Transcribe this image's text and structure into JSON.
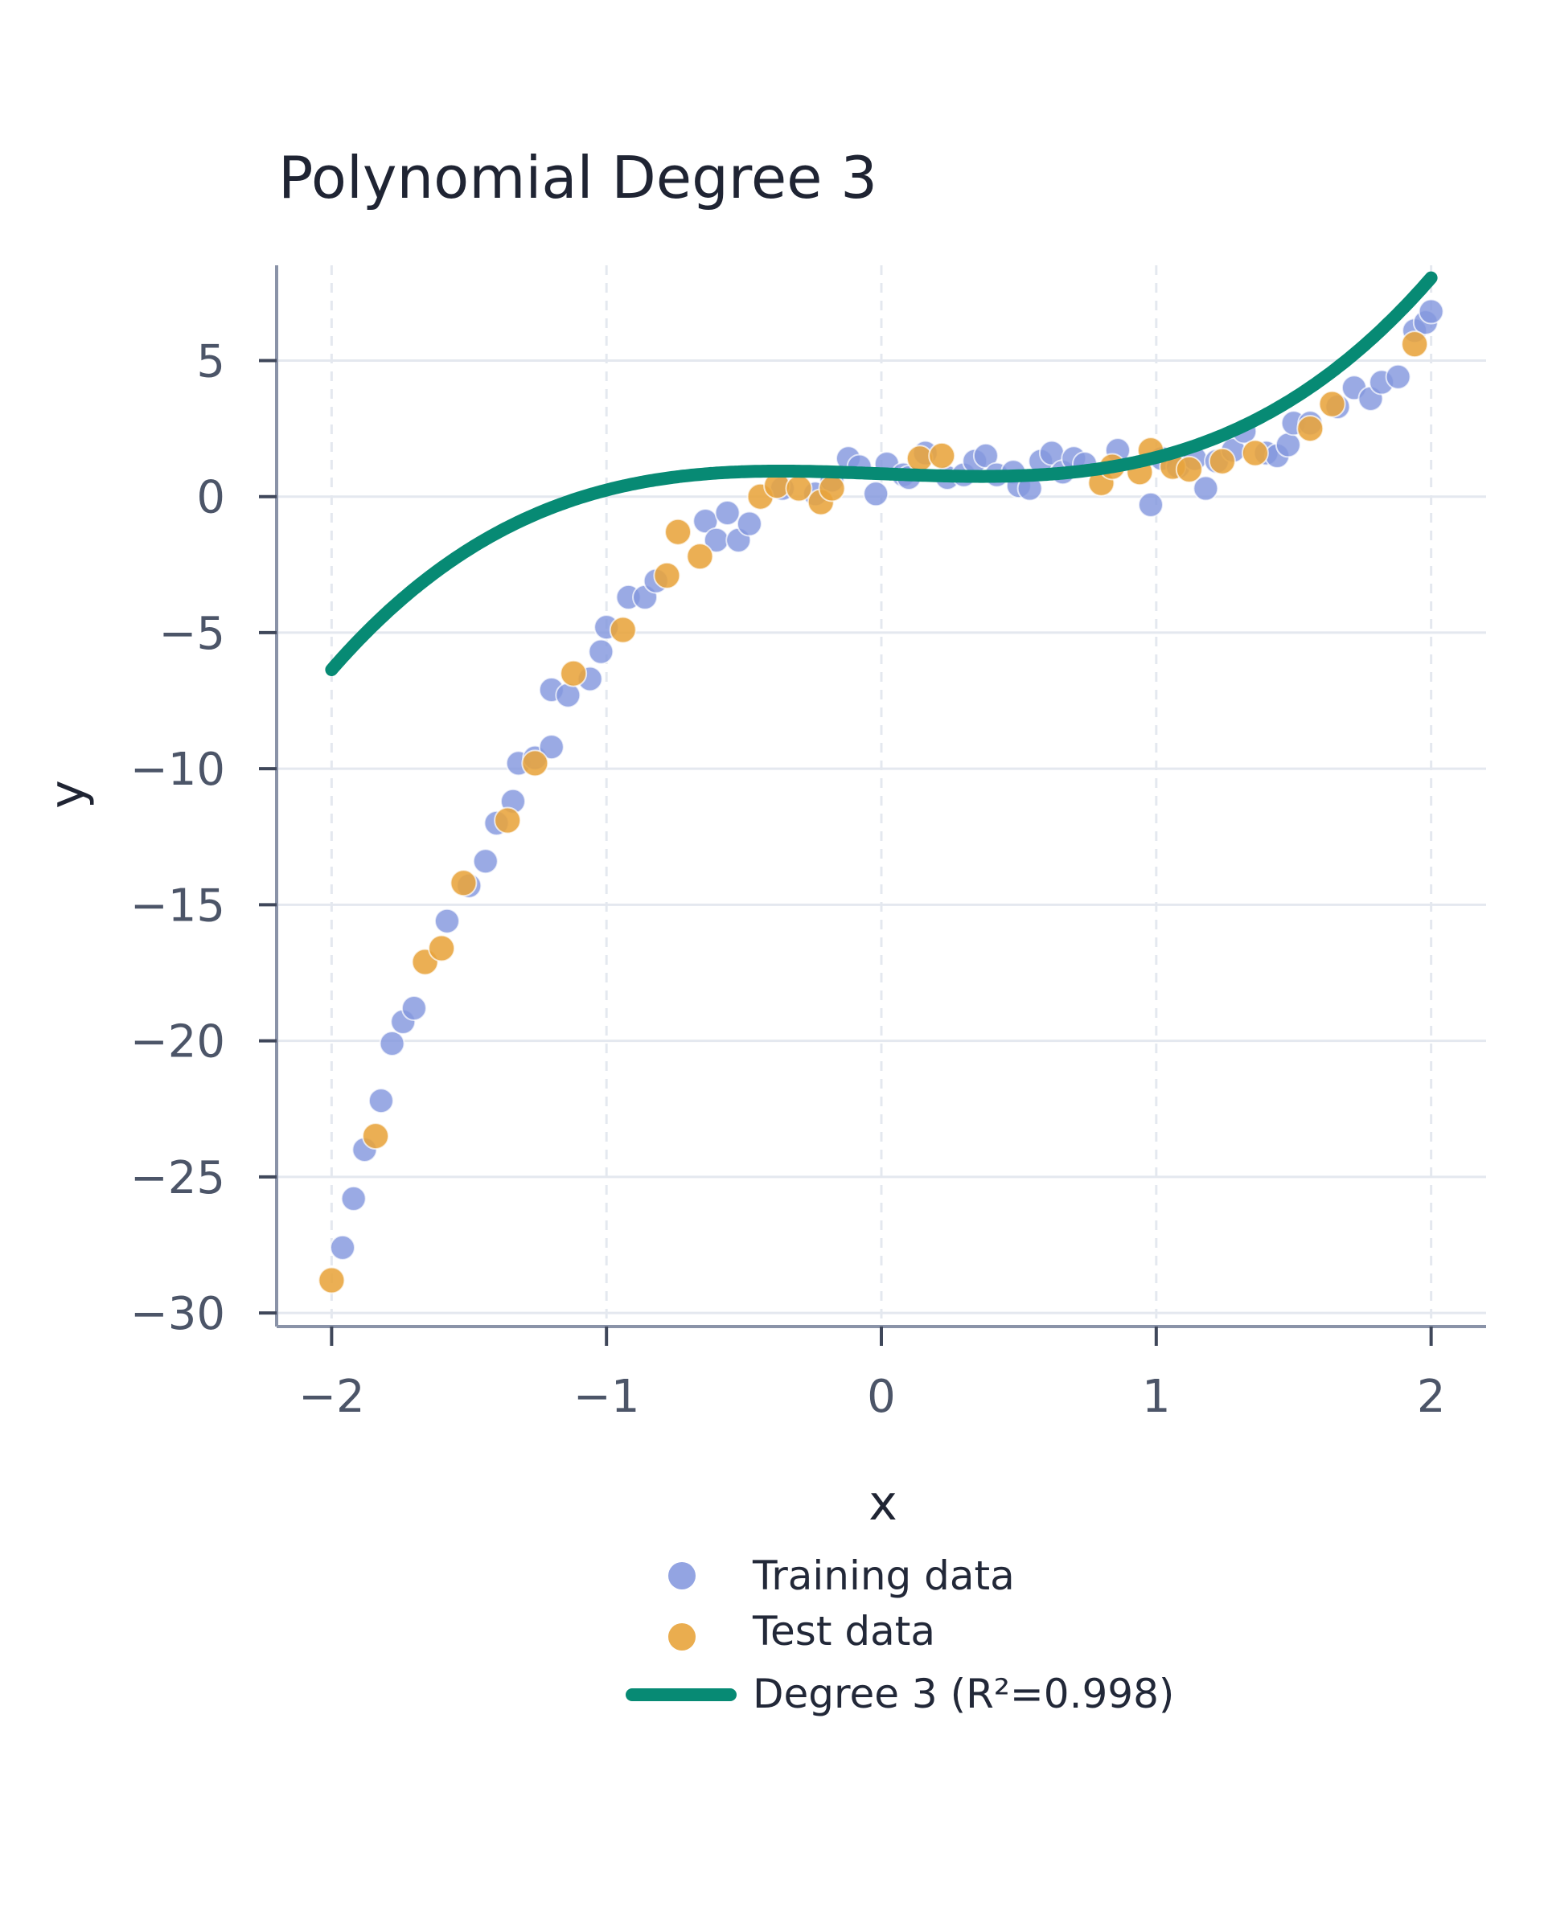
{
  "chart_data": {
    "type": "scatter",
    "title": "Polynomial Degree 3",
    "xlabel": "x",
    "ylabel": "y",
    "xlim": [
      -2.2,
      2.2
    ],
    "ylim": [
      -30.5,
      8.5
    ],
    "xticks": [
      -2,
      -1,
      0,
      1,
      2
    ],
    "xtick_labels": [
      "−2",
      "−1",
      "0",
      "1",
      "2"
    ],
    "yticks": [
      5,
      0,
      -5,
      -10,
      -15,
      -20,
      -25,
      -30
    ],
    "ytick_labels": [
      "5",
      "0",
      "−5",
      "−10",
      "−15",
      "−20",
      "−25",
      "−30"
    ],
    "grid": true,
    "legend_position": "bottom-center",
    "colors": {
      "training": "#8497de",
      "test": "#e8a43c",
      "fit": "#078a74",
      "grid": "#e4e8ef",
      "axis": "#8a93a8"
    },
    "series": [
      {
        "name": "Training data",
        "kind": "scatter",
        "points": [
          [
            -1.96,
            -27.6
          ],
          [
            -1.92,
            -25.8
          ],
          [
            -1.88,
            -24.0
          ],
          [
            -1.82,
            -22.2
          ],
          [
            -1.78,
            -20.1
          ],
          [
            -1.74,
            -19.3
          ],
          [
            -1.7,
            -18.8
          ],
          [
            -1.58,
            -15.6
          ],
          [
            -1.5,
            -14.3
          ],
          [
            -1.44,
            -13.4
          ],
          [
            -1.4,
            -12.0
          ],
          [
            -1.34,
            -11.2
          ],
          [
            -1.32,
            -9.8
          ],
          [
            -1.26,
            -9.6
          ],
          [
            -1.2,
            -9.2
          ],
          [
            -1.2,
            -7.1
          ],
          [
            -1.14,
            -7.3
          ],
          [
            -1.06,
            -6.7
          ],
          [
            -1.02,
            -5.7
          ],
          [
            -1.0,
            -4.8
          ],
          [
            -0.92,
            -3.7
          ],
          [
            -0.86,
            -3.7
          ],
          [
            -0.82,
            -3.1
          ],
          [
            -0.64,
            -0.9
          ],
          [
            -0.6,
            -1.6
          ],
          [
            -0.56,
            -0.6
          ],
          [
            -0.52,
            -1.6
          ],
          [
            -0.48,
            -1.0
          ],
          [
            -0.36,
            0.3
          ],
          [
            -0.24,
            0.1
          ],
          [
            -0.18,
            0.6
          ],
          [
            -0.12,
            1.4
          ],
          [
            -0.08,
            1.1
          ],
          [
            -0.02,
            0.1
          ],
          [
            0.02,
            1.2
          ],
          [
            0.08,
            0.8
          ],
          [
            0.1,
            0.7
          ],
          [
            0.16,
            1.6
          ],
          [
            0.24,
            0.7
          ],
          [
            0.3,
            0.8
          ],
          [
            0.34,
            1.3
          ],
          [
            0.38,
            1.5
          ],
          [
            0.42,
            0.8
          ],
          [
            0.48,
            0.9
          ],
          [
            0.5,
            0.4
          ],
          [
            0.54,
            0.3
          ],
          [
            0.58,
            1.3
          ],
          [
            0.62,
            1.6
          ],
          [
            0.66,
            0.9
          ],
          [
            0.7,
            1.4
          ],
          [
            0.74,
            1.2
          ],
          [
            0.86,
            1.7
          ],
          [
            0.98,
            -0.3
          ],
          [
            1.02,
            1.4
          ],
          [
            1.08,
            1.1
          ],
          [
            1.14,
            1.4
          ],
          [
            1.18,
            0.3
          ],
          [
            1.22,
            1.3
          ],
          [
            1.28,
            1.7
          ],
          [
            1.32,
            2.4
          ],
          [
            1.4,
            1.6
          ],
          [
            1.44,
            1.5
          ],
          [
            1.48,
            1.9
          ],
          [
            1.5,
            2.7
          ],
          [
            1.56,
            2.7
          ],
          [
            1.66,
            3.3
          ],
          [
            1.72,
            4.0
          ],
          [
            1.78,
            3.6
          ],
          [
            1.82,
            4.2
          ],
          [
            1.88,
            4.4
          ],
          [
            1.94,
            6.1
          ],
          [
            1.98,
            6.4
          ],
          [
            2.0,
            6.8
          ]
        ]
      },
      {
        "name": "Test data",
        "kind": "scatter",
        "points": [
          [
            -2.0,
            -28.8
          ],
          [
            -1.84,
            -23.5
          ],
          [
            -1.66,
            -17.1
          ],
          [
            -1.6,
            -16.6
          ],
          [
            -1.52,
            -14.2
          ],
          [
            -1.36,
            -11.9
          ],
          [
            -1.26,
            -9.8
          ],
          [
            -1.12,
            -6.5
          ],
          [
            -0.94,
            -4.9
          ],
          [
            -0.78,
            -2.9
          ],
          [
            -0.74,
            -1.3
          ],
          [
            -0.66,
            -2.2
          ],
          [
            -0.44,
            0.0
          ],
          [
            -0.38,
            0.4
          ],
          [
            -0.3,
            0.3
          ],
          [
            -0.22,
            -0.2
          ],
          [
            -0.18,
            0.3
          ],
          [
            0.14,
            1.4
          ],
          [
            0.22,
            1.5
          ],
          [
            0.8,
            0.5
          ],
          [
            0.84,
            1.1
          ],
          [
            0.94,
            0.9
          ],
          [
            0.98,
            1.7
          ],
          [
            1.06,
            1.1
          ],
          [
            1.12,
            1.0
          ],
          [
            1.24,
            1.3
          ],
          [
            1.36,
            1.6
          ],
          [
            1.56,
            2.5
          ],
          [
            1.64,
            3.4
          ],
          [
            1.94,
            5.6
          ]
        ]
      },
      {
        "name": "Degree 3 (R²=0.998)",
        "kind": "line",
        "model": {
          "form": "polynomial",
          "coefficients": [
            1,
            0,
            -0.4,
            0.84
          ]
        }
      }
    ]
  }
}
